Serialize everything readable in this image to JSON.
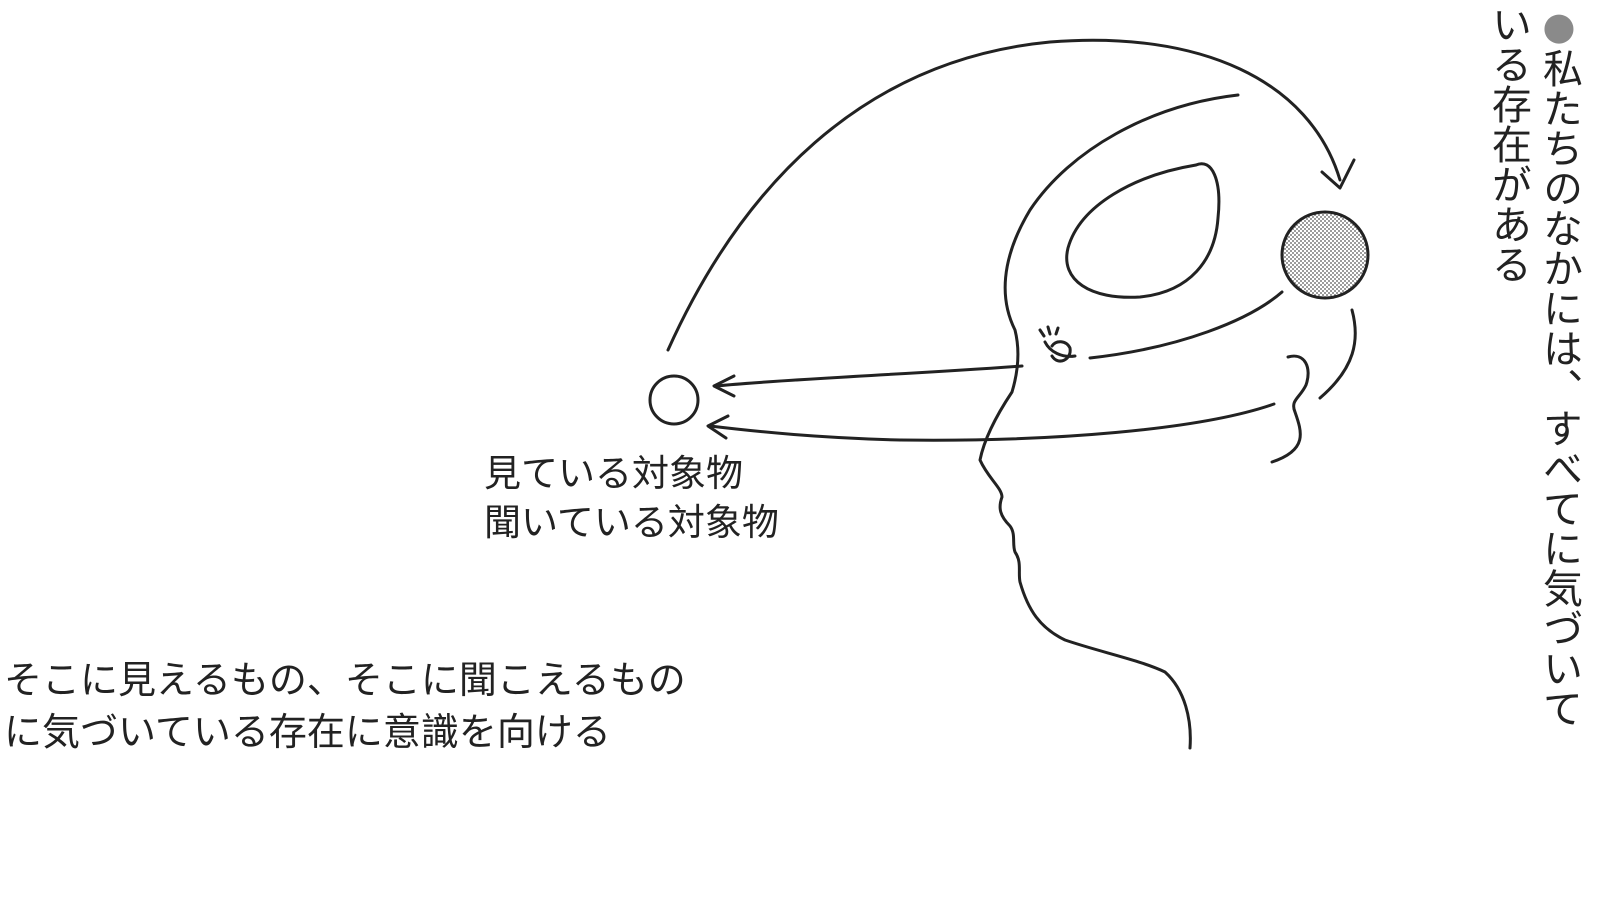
{
  "diagram": {
    "object_labels": [
      "見ている対象物",
      "聞いている対象物"
    ],
    "caption_lines": [
      "そこに見えるもの、そこに聞こえるもの",
      "に気づいている存在に意識を向ける"
    ],
    "side_note": {
      "bullet": "●",
      "lines": [
        "私たちのなかには、すべてに気づいて",
        "いる存在がある"
      ]
    },
    "colors": {
      "ink": "#222222",
      "bullet": "#8a8a8a",
      "awareness_dot_fill": "#c8c8c8"
    }
  }
}
